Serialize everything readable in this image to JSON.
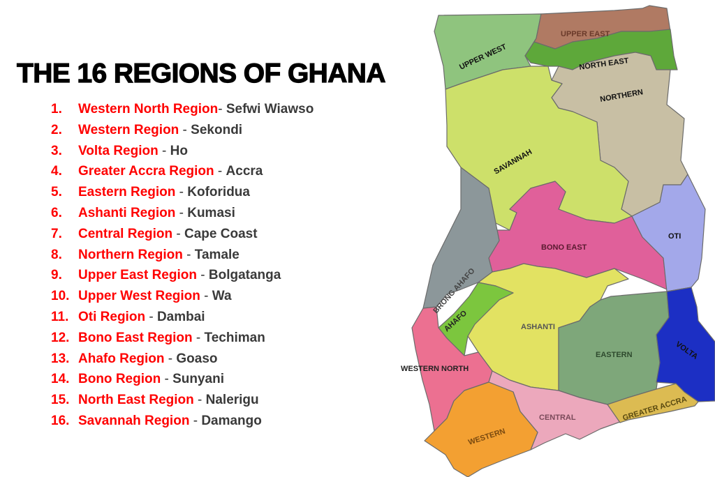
{
  "title": "THE 16 REGIONS OF GHANA",
  "colors": {
    "region_name": "#ff0000",
    "capital": "#3a3a3a",
    "title": "#000000"
  },
  "regions_list": [
    {
      "number": "1.",
      "region": "Western North Region",
      "sep": "- ",
      "capital": "Sefwi Wiawso"
    },
    {
      "number": "2.",
      "region": "Western Region",
      "sep": " - ",
      "capital": "Sekondi"
    },
    {
      "number": "3.",
      "region": "Volta Region",
      "sep": " - ",
      "capital": "Ho"
    },
    {
      "number": "4.",
      "region": "Greater Accra Region",
      "sep": " - ",
      "capital": "Accra"
    },
    {
      "number": "5.",
      "region": "Eastern Region",
      "sep": " - ",
      "capital": "Koforidua"
    },
    {
      "number": "6.",
      "region": "Ashanti Region",
      "sep": " - ",
      "capital": "Kumasi"
    },
    {
      "number": "7.",
      "region": "Central Region",
      "sep": " - ",
      "capital": "Cape Coast"
    },
    {
      "number": "8.",
      "region": "Northern Region",
      "sep": " - ",
      "capital": "Tamale"
    },
    {
      "number": "9.",
      "region": "Upper East Region",
      "sep": " - ",
      "capital": "Bolgatanga"
    },
    {
      "number": "10.",
      "region": "Upper West Region",
      "sep": " - ",
      "capital": "Wa"
    },
    {
      "number": "11.",
      "region": "Oti Region",
      "sep": " - ",
      "capital": "Dambai"
    },
    {
      "number": "12.",
      "region": "Bono East Region",
      "sep": " - ",
      "capital": "Techiman"
    },
    {
      "number": "13.",
      "region": "Ahafo Region",
      "sep": " - ",
      "capital": "Goaso"
    },
    {
      "number": "14.",
      "region": "Bono Region",
      "sep": " - ",
      "capital": "Sunyani"
    },
    {
      "number": "15.",
      "region": "North East Region",
      "sep": " - ",
      "capital": "Nalerigu"
    },
    {
      "number": "16.",
      "region": "Savannah Region",
      "sep": " - ",
      "capital": "Damango"
    }
  ],
  "map": {
    "labels": {
      "upper_west": "UPPER WEST",
      "upper_east": "UPPER EAST",
      "north_east": "NORTH EAST",
      "northern": "NORTHERN",
      "savannah": "SAVANNAH",
      "bono_east": "BONO EAST",
      "oti": "OTI",
      "brong_ahafo": "BRONG AHAFO",
      "ahafo": "AHAFO",
      "ashanti": "ASHANTI",
      "eastern": "EASTERN",
      "volta": "VOLTA",
      "western_north": "WESTERN NORTH",
      "western": "WESTERN",
      "central": "CENTRAL",
      "greater_accra": "GREATER ACCRA"
    },
    "region_colors": {
      "upper_west": "#8fc47e",
      "upper_east": "#b07a63",
      "north_east": "#5ea83a",
      "northern": "#c8bfa4",
      "savannah": "#cde06a",
      "bono_east": "#e0609a",
      "oti": "#a3a8ea",
      "brong_ahafo": "#8c979a",
      "ahafo": "#7cc63e",
      "ashanti": "#e2e262",
      "eastern": "#7ea77a",
      "volta": "#1c2fc4",
      "western_north": "#ec7091",
      "western": "#f3a032",
      "central": "#eca8bc",
      "greater_accra": "#dcbb52"
    }
  }
}
